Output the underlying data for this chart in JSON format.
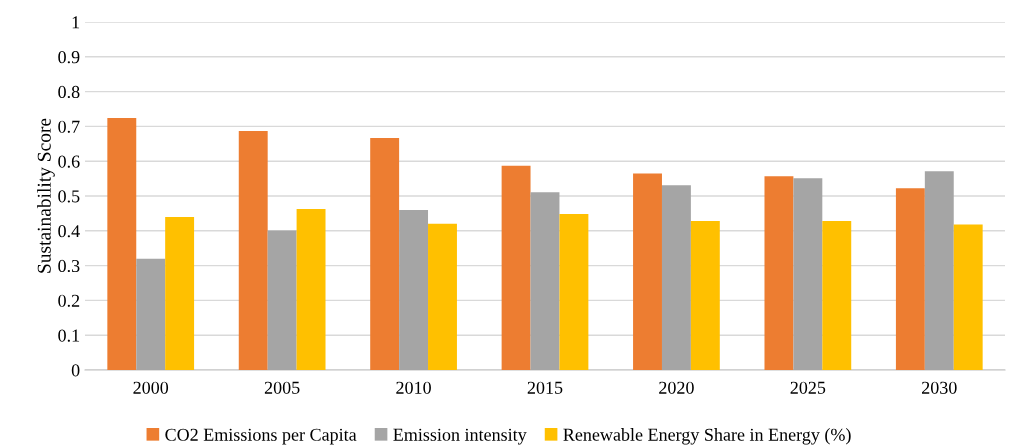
{
  "chart_data": {
    "type": "bar",
    "ylabel": "Sustainability Score",
    "categories": [
      "2000",
      "2005",
      "2010",
      "2015",
      "2020",
      "2025",
      "2030"
    ],
    "series": [
      {
        "name": "CO2 Emissions per Capita",
        "color": "#ed7d31",
        "values": [
          0.724,
          0.687,
          0.667,
          0.587,
          0.565,
          0.557,
          0.522
        ]
      },
      {
        "name": "Emission intensity",
        "color": "#a5a5a5",
        "values": [
          0.32,
          0.401,
          0.46,
          0.511,
          0.531,
          0.551,
          0.571
        ]
      },
      {
        "name": "Renewable Energy Share in Energy (%)",
        "color": "#ffc000",
        "values": [
          0.44,
          0.463,
          0.42,
          0.448,
          0.428,
          0.428,
          0.418
        ]
      }
    ],
    "ylim": [
      0,
      1
    ],
    "yticks": [
      0,
      0.1,
      0.2,
      0.3,
      0.4,
      0.5,
      0.6,
      0.7,
      0.8,
      0.9,
      1
    ],
    "grid": "y",
    "legend": "bottom"
  }
}
